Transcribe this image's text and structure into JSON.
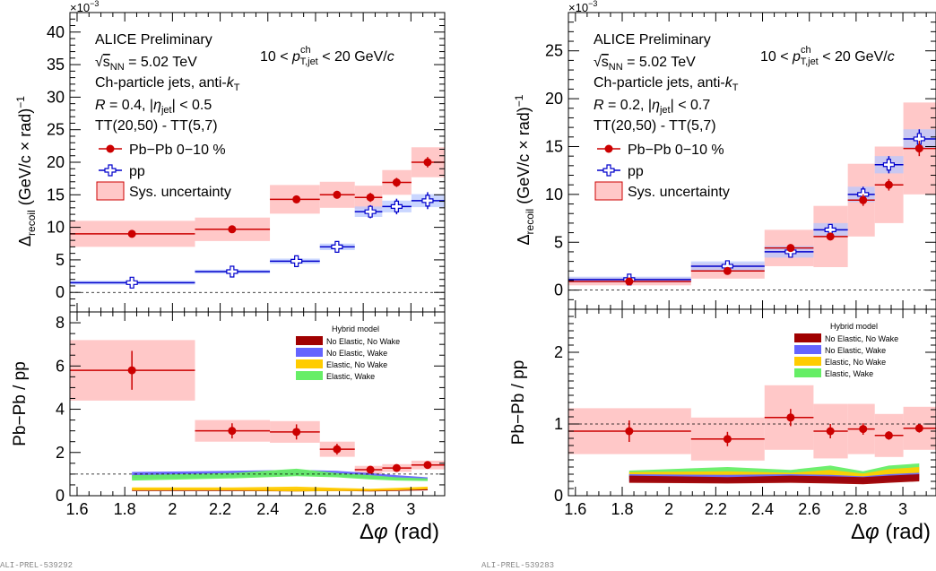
{
  "chart_data": [
    {
      "type": "scatter",
      "panel": "left",
      "exponent_label": "×10",
      "exponent_power": "−3",
      "ylabel_top_base": "Δ",
      "ylabel_top_sub": "recoil",
      "ylabel_top_units": "(GeV/c × rad)",
      "ylabel_top_power": "−1",
      "ylabel_bottom": "Pb−Pb / pp",
      "xlabel": "Δφ (rad)",
      "xlim": [
        1.57,
        3.1416
      ],
      "ylim_top": [
        -3,
        43
      ],
      "ylim_bottom": [
        0,
        8.5
      ],
      "x_ticks": [
        "1.6",
        "1.8",
        "2",
        "2.2",
        "2.4",
        "2.6",
        "2.8",
        "3"
      ],
      "y_ticks_top": [
        "0",
        "5",
        "10",
        "15",
        "20",
        "25",
        "30",
        "35",
        "40"
      ],
      "y_ticks_bottom": [
        "0",
        "2",
        "4",
        "6",
        "8"
      ],
      "legend_text": {
        "experiment": "ALICE Preliminary",
        "energy": "√sNN = 5.02 TeV",
        "jets": "Ch-particle jets, anti-kT",
        "radius": "R = 0.4, |ηjet| < 0.5",
        "tt": "TT(20,50) - TT(5,7)",
        "pt_range": "10 < pT,jet ch < 20 GeV/c"
      },
      "legend_entries": [
        "Pb−Pb 0−10 %",
        "pp",
        "Sys. uncertainty"
      ],
      "model_title": "Hybrid model",
      "model_entries": [
        {
          "name": "No Elastic, No Wake",
          "color": "#a00000"
        },
        {
          "name": "No Elastic, Wake",
          "color": "#6464ff"
        },
        {
          "name": "Elastic, No Wake",
          "color": "#ffcc00"
        },
        {
          "name": "Elastic, Wake",
          "color": "#66ee66"
        }
      ],
      "series": [
        {
          "name": "Pb−Pb 0−10 %",
          "color": "#cc0000",
          "points": [
            {
              "x": 1.83,
              "xlo": 1.5708,
              "xhi": 2.0944,
              "y": 9.0,
              "err": 0.5,
              "sys": 2.0
            },
            {
              "x": 2.25,
              "xlo": 2.0944,
              "xhi": 2.4086,
              "y": 9.7,
              "err": 0.5,
              "sys": 1.8
            },
            {
              "x": 2.52,
              "xlo": 2.4086,
              "xhi": 2.618,
              "y": 14.3,
              "err": 0.6,
              "sys": 2.2
            },
            {
              "x": 2.69,
              "xlo": 2.618,
              "xhi": 2.7646,
              "y": 15.0,
              "err": 0.6,
              "sys": 2.0
            },
            {
              "x": 2.83,
              "xlo": 2.7646,
              "xhi": 2.8798,
              "y": 14.6,
              "err": 0.7,
              "sys": 1.8
            },
            {
              "x": 2.94,
              "xlo": 2.8798,
              "xhi": 3.002,
              "y": 16.9,
              "err": 0.7,
              "sys": 1.9
            },
            {
              "x": 3.07,
              "xlo": 3.002,
              "xhi": 3.1416,
              "y": 20.0,
              "err": 0.8,
              "sys": 2.3
            }
          ]
        },
        {
          "name": "pp",
          "color": "#0000cc",
          "points": [
            {
              "x": 1.83,
              "xlo": 1.5708,
              "xhi": 2.0944,
              "y": 1.5,
              "err": 0.6,
              "sys": 0.3
            },
            {
              "x": 2.25,
              "xlo": 2.0944,
              "xhi": 2.4086,
              "y": 3.2,
              "err": 0.5,
              "sys": 0.3
            },
            {
              "x": 2.52,
              "xlo": 2.4086,
              "xhi": 2.618,
              "y": 4.8,
              "err": 0.5,
              "sys": 0.4
            },
            {
              "x": 2.69,
              "xlo": 2.618,
              "xhi": 2.7646,
              "y": 7.0,
              "err": 0.6,
              "sys": 0.5
            },
            {
              "x": 2.83,
              "xlo": 2.7646,
              "xhi": 2.8798,
              "y": 12.4,
              "err": 1.0,
              "sys": 0.8
            },
            {
              "x": 2.94,
              "xlo": 2.8798,
              "xhi": 3.002,
              "y": 13.2,
              "err": 1.2,
              "sys": 0.9
            },
            {
              "x": 3.07,
              "xlo": 3.002,
              "xhi": 3.1416,
              "y": 14.1,
              "err": 1.3,
              "sys": 1.0
            }
          ]
        }
      ],
      "ratio": [
        {
          "x": 1.83,
          "xlo": 1.5708,
          "xhi": 2.0944,
          "y": 5.8,
          "err": 0.9,
          "sys": 1.4
        },
        {
          "x": 2.25,
          "xlo": 2.0944,
          "xhi": 2.4086,
          "y": 3.0,
          "err": 0.35,
          "sys": 0.5
        },
        {
          "x": 2.52,
          "xlo": 2.4086,
          "xhi": 2.618,
          "y": 2.95,
          "err": 0.35,
          "sys": 0.5
        },
        {
          "x": 2.69,
          "xlo": 2.618,
          "xhi": 2.7646,
          "y": 2.15,
          "err": 0.25,
          "sys": 0.35
        },
        {
          "x": 2.83,
          "xlo": 2.7646,
          "xhi": 2.8798,
          "y": 1.2,
          "err": 0.1,
          "sys": 0.18
        },
        {
          "x": 2.94,
          "xlo": 2.8798,
          "xhi": 3.002,
          "y": 1.28,
          "err": 0.1,
          "sys": 0.18
        },
        {
          "x": 3.07,
          "xlo": 3.002,
          "xhi": 3.1416,
          "y": 1.42,
          "err": 0.1,
          "sys": 0.2
        }
      ],
      "models": [
        {
          "name": "No Elastic, Wake",
          "x": [
            1.83,
            2.25,
            2.52,
            2.69,
            2.83,
            2.94,
            3.07
          ],
          "lo": [
            0.8,
            0.85,
            0.95,
            0.9,
            0.8,
            0.75,
            0.7
          ],
          "hi": [
            1.1,
            1.15,
            1.2,
            1.15,
            1.05,
            0.95,
            0.85
          ]
        },
        {
          "name": "Elastic, Wake",
          "x": [
            1.83,
            2.25,
            2.52,
            2.69,
            2.83,
            2.94,
            3.07
          ],
          "lo": [
            0.7,
            0.8,
            0.9,
            0.85,
            0.75,
            0.7,
            0.68
          ],
          "hi": [
            0.95,
            1.05,
            1.25,
            1.05,
            0.95,
            0.85,
            0.8
          ]
        },
        {
          "name": "No Elastic, No Wake",
          "x": [
            1.83,
            2.25,
            2.52,
            2.69,
            2.83,
            2.94,
            3.07
          ],
          "lo": [
            0.22,
            0.22,
            0.2,
            0.22,
            0.2,
            0.22,
            0.25
          ],
          "hi": [
            0.32,
            0.3,
            0.3,
            0.3,
            0.28,
            0.3,
            0.34
          ]
        },
        {
          "name": "Elastic, No Wake",
          "x": [
            1.83,
            2.25,
            2.52,
            2.69,
            2.83,
            2.94,
            3.07
          ],
          "lo": [
            0.25,
            0.25,
            0.2,
            0.22,
            0.22,
            0.25,
            0.3
          ],
          "hi": [
            0.38,
            0.38,
            0.42,
            0.36,
            0.32,
            0.36,
            0.42
          ]
        }
      ]
    },
    {
      "type": "scatter",
      "panel": "right",
      "exponent_label": "×10",
      "exponent_power": "−3",
      "ylabel_top_base": "Δ",
      "ylabel_top_sub": "recoil",
      "ylabel_top_units": "(GeV/c × rad)",
      "ylabel_top_power": "−1",
      "ylabel_bottom": "Pb−Pb / pp",
      "xlabel": "Δφ (rad)",
      "xlim": [
        1.57,
        3.1416
      ],
      "ylim_top": [
        -2,
        29
      ],
      "ylim_bottom": [
        0,
        2.6
      ],
      "x_ticks": [
        "1.6",
        "1.8",
        "2",
        "2.2",
        "2.4",
        "2.6",
        "2.8",
        "3"
      ],
      "y_ticks_top": [
        "0",
        "5",
        "10",
        "15",
        "20",
        "25"
      ],
      "y_ticks_bottom": [
        "0",
        "1",
        "2"
      ],
      "legend_text": {
        "experiment": "ALICE Preliminary",
        "energy": "√sNN = 5.02 TeV",
        "jets": "Ch-particle jets, anti-kT",
        "radius": "R = 0.2, |ηjet| < 0.7",
        "tt": "TT(20,50) - TT(5,7)",
        "pt_range": "10 < pT,jet ch < 20 GeV/c"
      },
      "legend_entries": [
        "Pb−Pb 0−10 %",
        "pp",
        "Sys. uncertainty"
      ],
      "model_title": "Hybrid model",
      "model_entries": [
        {
          "name": "No Elastic, No Wake",
          "color": "#a00000"
        },
        {
          "name": "No Elastic, Wake",
          "color": "#6464ff"
        },
        {
          "name": "Elastic, No Wake",
          "color": "#ffcc00"
        },
        {
          "name": "Elastic, Wake",
          "color": "#66ee66"
        }
      ],
      "series": [
        {
          "name": "Pb−Pb 0−10 %",
          "color": "#cc0000",
          "points": [
            {
              "x": 1.83,
              "xlo": 1.5708,
              "xhi": 2.0944,
              "y": 0.9,
              "err": 0.4,
              "sys": 0.4
            },
            {
              "x": 2.25,
              "xlo": 2.0944,
              "xhi": 2.4086,
              "y": 2.0,
              "err": 0.3,
              "sys": 0.8
            },
            {
              "x": 2.52,
              "xlo": 2.4086,
              "xhi": 2.618,
              "y": 4.4,
              "err": 0.4,
              "sys": 1.9
            },
            {
              "x": 2.69,
              "xlo": 2.618,
              "xhi": 2.7646,
              "y": 5.6,
              "err": 0.4,
              "sys": 3.2
            },
            {
              "x": 2.83,
              "xlo": 2.7646,
              "xhi": 2.8798,
              "y": 9.4,
              "err": 0.6,
              "sys": 3.8
            },
            {
              "x": 2.94,
              "xlo": 2.8798,
              "xhi": 3.002,
              "y": 11.0,
              "err": 0.6,
              "sys": 4.0
            },
            {
              "x": 3.07,
              "xlo": 3.002,
              "xhi": 3.1416,
              "y": 14.8,
              "err": 0.8,
              "sys": 4.8
            }
          ]
        },
        {
          "name": "pp",
          "color": "#0000cc",
          "points": [
            {
              "x": 1.83,
              "xlo": 1.5708,
              "xhi": 2.0944,
              "y": 1.1,
              "err": 0.3,
              "sys": 0.3
            },
            {
              "x": 2.25,
              "xlo": 2.0944,
              "xhi": 2.4086,
              "y": 2.5,
              "err": 0.3,
              "sys": 0.5
            },
            {
              "x": 2.52,
              "xlo": 2.4086,
              "xhi": 2.618,
              "y": 4.0,
              "err": 0.4,
              "sys": 0.6
            },
            {
              "x": 2.69,
              "xlo": 2.618,
              "xhi": 2.7646,
              "y": 6.3,
              "err": 0.5,
              "sys": 0.7
            },
            {
              "x": 2.83,
              "xlo": 2.7646,
              "xhi": 2.8798,
              "y": 10.0,
              "err": 0.8,
              "sys": 0.8
            },
            {
              "x": 2.94,
              "xlo": 2.8798,
              "xhi": 3.002,
              "y": 13.1,
              "err": 0.9,
              "sys": 0.9
            },
            {
              "x": 3.07,
              "xlo": 3.002,
              "xhi": 3.1416,
              "y": 15.8,
              "err": 1.0,
              "sys": 1.0
            }
          ]
        }
      ],
      "ratio": [
        {
          "x": 1.83,
          "xlo": 1.5708,
          "xhi": 2.0944,
          "y": 0.9,
          "err": 0.15,
          "sys": 0.32
        },
        {
          "x": 2.25,
          "xlo": 2.0944,
          "xhi": 2.4086,
          "y": 0.79,
          "err": 0.1,
          "sys": 0.3
        },
        {
          "x": 2.52,
          "xlo": 2.4086,
          "xhi": 2.618,
          "y": 1.09,
          "err": 0.12,
          "sys": 0.45
        },
        {
          "x": 2.69,
          "xlo": 2.618,
          "xhi": 2.7646,
          "y": 0.9,
          "err": 0.1,
          "sys": 0.38
        },
        {
          "x": 2.83,
          "xlo": 2.7646,
          "xhi": 2.8798,
          "y": 0.93,
          "err": 0.08,
          "sys": 0.35
        },
        {
          "x": 2.94,
          "xlo": 2.8798,
          "xhi": 3.002,
          "y": 0.84,
          "err": 0.06,
          "sys": 0.3
        },
        {
          "x": 3.07,
          "xlo": 3.002,
          "xhi": 3.1416,
          "y": 0.94,
          "err": 0.06,
          "sys": 0.3
        }
      ],
      "models": [
        {
          "name": "Elastic, Wake",
          "x": [
            1.83,
            2.25,
            2.52,
            2.69,
            2.83,
            2.94,
            3.07
          ],
          "lo": [
            0.26,
            0.26,
            0.26,
            0.27,
            0.26,
            0.3,
            0.33
          ],
          "hi": [
            0.35,
            0.4,
            0.36,
            0.42,
            0.34,
            0.42,
            0.45
          ]
        },
        {
          "name": "Elastic, No Wake",
          "x": [
            1.83,
            2.25,
            2.52,
            2.69,
            2.83,
            2.94,
            3.07
          ],
          "lo": [
            0.24,
            0.24,
            0.24,
            0.25,
            0.24,
            0.27,
            0.3
          ],
          "hi": [
            0.33,
            0.34,
            0.32,
            0.36,
            0.31,
            0.37,
            0.4
          ]
        },
        {
          "name": "No Elastic, Wake",
          "x": [
            1.83,
            2.25,
            2.52,
            2.69,
            2.83,
            2.94,
            3.07
          ],
          "lo": [
            0.2,
            0.19,
            0.2,
            0.19,
            0.18,
            0.2,
            0.22
          ],
          "hi": [
            0.3,
            0.29,
            0.3,
            0.29,
            0.27,
            0.3,
            0.32
          ]
        },
        {
          "name": "No Elastic, No Wake",
          "x": [
            1.83,
            2.25,
            2.52,
            2.69,
            2.83,
            2.94,
            3.07
          ],
          "lo": [
            0.18,
            0.17,
            0.18,
            0.17,
            0.16,
            0.18,
            0.2
          ],
          "hi": [
            0.28,
            0.26,
            0.28,
            0.27,
            0.26,
            0.28,
            0.3
          ]
        }
      ]
    }
  ],
  "footers": [
    "ALI-PREL-539292",
    "ALI-PREL-539283"
  ]
}
